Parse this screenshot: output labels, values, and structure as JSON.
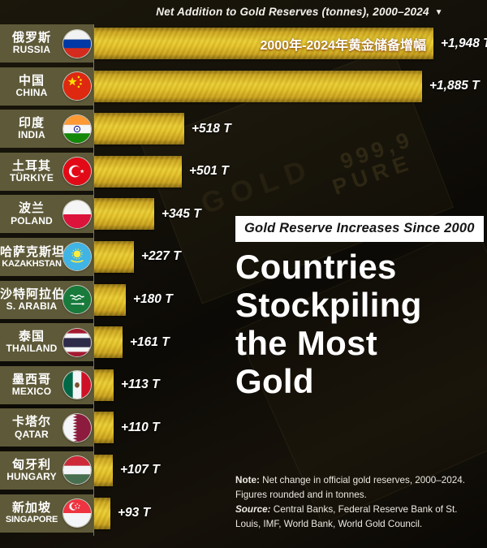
{
  "header": {
    "title": "Net Addition to Gold Reserves (tonnes), 2000–2024",
    "dropdown_icon": "▼"
  },
  "chart_data": {
    "type": "bar",
    "orientation": "horizontal",
    "unit": "tonnes",
    "title": "Net Addition to Gold Reserves (tonnes), 2000–2024",
    "xlim": [
      0,
      1948
    ],
    "grid": false,
    "legend": false,
    "annotation": "2000年-2024年黄金储备增幅",
    "annotation_row": "RUSSIA",
    "categories": [
      "RUSSIA",
      "CHINA",
      "INDIA",
      "TÜRKIYE",
      "POLAND",
      "KAZAKHSTAN",
      "S. ARABIA",
      "THAILAND",
      "MEXICO",
      "QATAR",
      "HUNGARY",
      "SINGAPORE"
    ],
    "values": [
      1948,
      1885,
      518,
      501,
      345,
      227,
      180,
      161,
      113,
      110,
      107,
      93
    ],
    "rows": [
      {
        "name_cn": "俄罗斯",
        "name_en": "RUSSIA",
        "value": 1948,
        "label": "+1,948 T",
        "flag": "flag-russia-icon"
      },
      {
        "name_cn": "中国",
        "name_en": "CHINA",
        "value": 1885,
        "label": "+1,885 T",
        "flag": "flag-china-icon"
      },
      {
        "name_cn": "印度",
        "name_en": "INDIA",
        "value": 518,
        "label": "+518 T",
        "flag": "flag-india-icon"
      },
      {
        "name_cn": "土耳其",
        "name_en": "TÜRKIYE",
        "value": 501,
        "label": "+501 T",
        "flag": "flag-turkiye-icon"
      },
      {
        "name_cn": "波兰",
        "name_en": "POLAND",
        "value": 345,
        "label": "+345 T",
        "flag": "flag-poland-icon"
      },
      {
        "name_cn": "哈萨克斯坦",
        "name_en": "KAZAKHSTAN",
        "value": 227,
        "label": "+227 T",
        "flag": "flag-kazakhstan-icon"
      },
      {
        "name_cn": "沙特阿拉伯",
        "name_en": "S. ARABIA",
        "value": 180,
        "label": "+180 T",
        "flag": "flag-saudi-arabia-icon"
      },
      {
        "name_cn": "泰国",
        "name_en": "THAILAND",
        "value": 161,
        "label": "+161 T",
        "flag": "flag-thailand-icon"
      },
      {
        "name_cn": "墨西哥",
        "name_en": "MEXICO",
        "value": 113,
        "label": "+113 T",
        "flag": "flag-mexico-icon"
      },
      {
        "name_cn": "卡塔尔",
        "name_en": "QATAR",
        "value": 110,
        "label": "+110 T",
        "flag": "flag-qatar-icon"
      },
      {
        "name_cn": "匈牙利",
        "name_en": "HUNGARY",
        "value": 107,
        "label": "+107 T",
        "flag": "flag-hungary-icon"
      },
      {
        "name_cn": "新加坡",
        "name_en": "SINGAPORE",
        "value": 93,
        "label": "+93 T",
        "flag": "flag-singapore-icon"
      }
    ]
  },
  "overlay": {
    "badge": "Gold Reserve Increases Since 2000",
    "title_line1": "Countries",
    "title_line2": "Stockpiling",
    "title_line3": "the Most",
    "title_line4": "Gold"
  },
  "footnote": {
    "note_label": "Note:",
    "note_text": " Net change in official gold reserves, 2000–2024. Figures rounded and in tonnes.",
    "source_label": "Source:",
    "source_text": " Central Banks, Federal Reserve Bank of St. Louis, IMF, World Bank, World Gold Council."
  },
  "background": {
    "engraving_line1": "999,9",
    "engraving_line2": "PURE",
    "engraving_line3": "GOLD"
  },
  "colors": {
    "bar_gold": "#e3c229",
    "label_block": "#5e5a39",
    "background": "#14110a",
    "badge_bg": "#ffffff",
    "badge_text": "#151515",
    "text": "#ffffff"
  }
}
